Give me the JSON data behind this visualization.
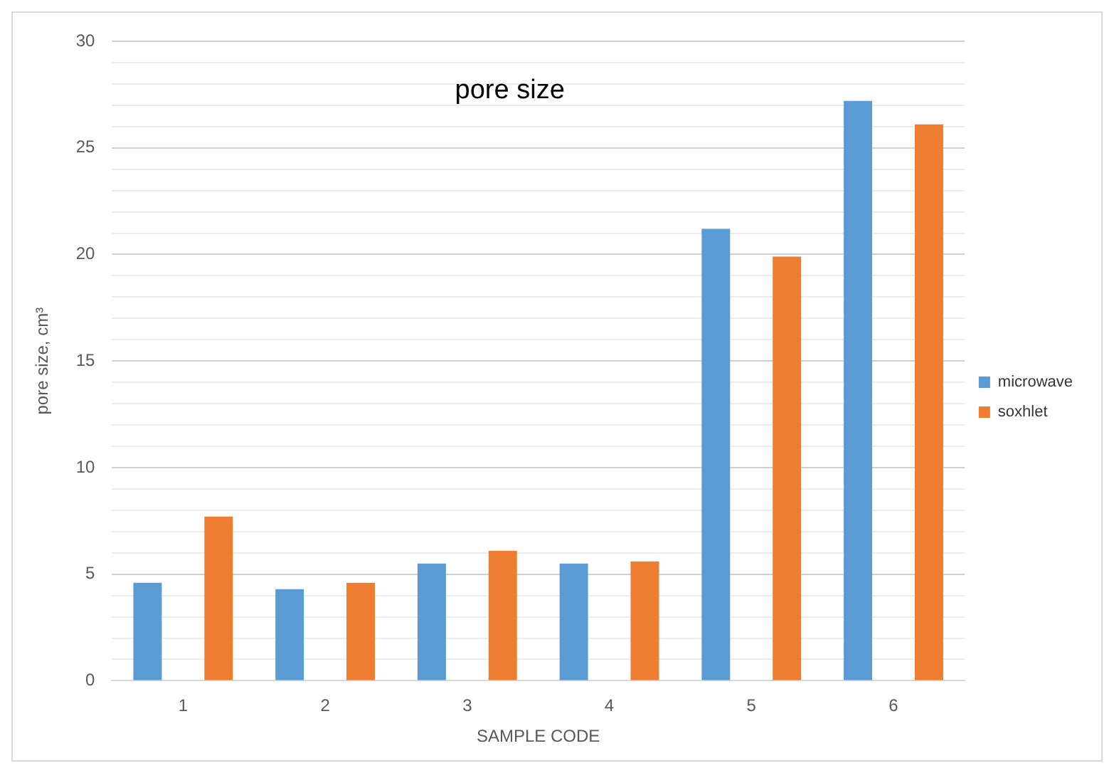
{
  "chart_data": {
    "type": "bar",
    "title": "pore size",
    "xlabel": "SAMPLE CODE",
    "ylabel": "pore size, cm³",
    "categories": [
      "1",
      "2",
      "3",
      "4",
      "5",
      "6"
    ],
    "series": [
      {
        "name": "microwave",
        "color": "#5b9bd5",
        "values": [
          4.6,
          4.3,
          5.5,
          5.5,
          21.2,
          27.2
        ]
      },
      {
        "name": "soxhlet",
        "color": "#ed7d31",
        "values": [
          7.7,
          4.6,
          6.1,
          5.6,
          19.9,
          26.1
        ]
      }
    ],
    "ylim": [
      0,
      30
    ],
    "yticks": [
      0,
      {
        "value": 1,
        "label": null
      },
      {
        "value": 2,
        "label": null
      },
      {
        "value": 3,
        "label": null
      },
      {
        "value": 4,
        "label": null
      },
      5,
      {
        "value": 6,
        "label": null
      },
      {
        "value": 7,
        "label": null
      },
      {
        "value": 8,
        "label": null
      },
      {
        "value": 9,
        "label": null
      },
      10,
      {
        "value": 11,
        "label": null
      },
      {
        "value": 12,
        "label": null
      },
      {
        "value": 13,
        "label": null
      },
      {
        "value": 14,
        "label": null
      },
      15,
      {
        "value": 16,
        "label": null
      },
      {
        "value": 17,
        "label": null
      },
      {
        "value": 18,
        "label": null
      },
      {
        "value": 19,
        "label": null
      },
      20,
      {
        "value": 21,
        "label": null
      },
      {
        "value": 22,
        "label": null
      },
      {
        "value": 23,
        "label": null
      },
      {
        "value": 24,
        "label": null
      },
      25,
      {
        "value": 26,
        "label": null
      },
      {
        "value": 27,
        "label": null
      },
      {
        "value": 28,
        "label": null
      },
      {
        "value": 29,
        "label": null
      },
      30
    ],
    "grid": "y",
    "legend": "right"
  }
}
